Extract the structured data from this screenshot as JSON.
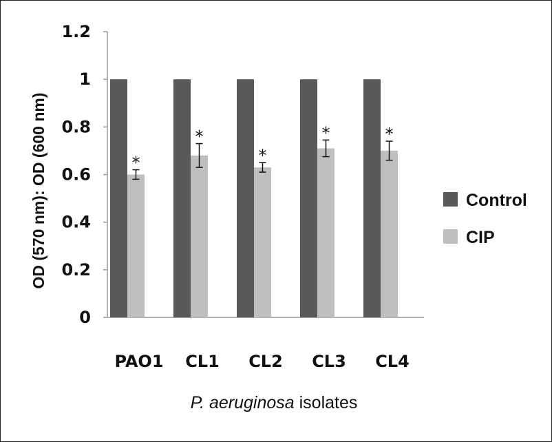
{
  "chart_data": {
    "type": "bar",
    "categories": [
      "PAO1",
      "CL1",
      "CL2",
      "CL3",
      "CL4"
    ],
    "series": [
      {
        "name": "Control",
        "values": [
          1,
          1,
          1,
          1,
          1
        ],
        "color": "#595959"
      },
      {
        "name": "CIP",
        "values": [
          0.6,
          0.68,
          0.63,
          0.71,
          0.7
        ],
        "errors": [
          0.02,
          0.05,
          0.02,
          0.035,
          0.04
        ],
        "color": "#bfbfbf"
      }
    ],
    "annotations": [
      "*",
      "*",
      "*",
      "*",
      "*"
    ],
    "ylabel": "OD (570 nm): OD (600 nm)",
    "xlabel_italic": "P. aeruginosa",
    "xlabel_rest": " isolates",
    "ylim": [
      0,
      1.2
    ],
    "yticks": [
      "0",
      "0.2",
      "0.4",
      "0.6",
      "0.8",
      "1",
      "1.2"
    ],
    "grid": false,
    "legend_position": "right"
  }
}
